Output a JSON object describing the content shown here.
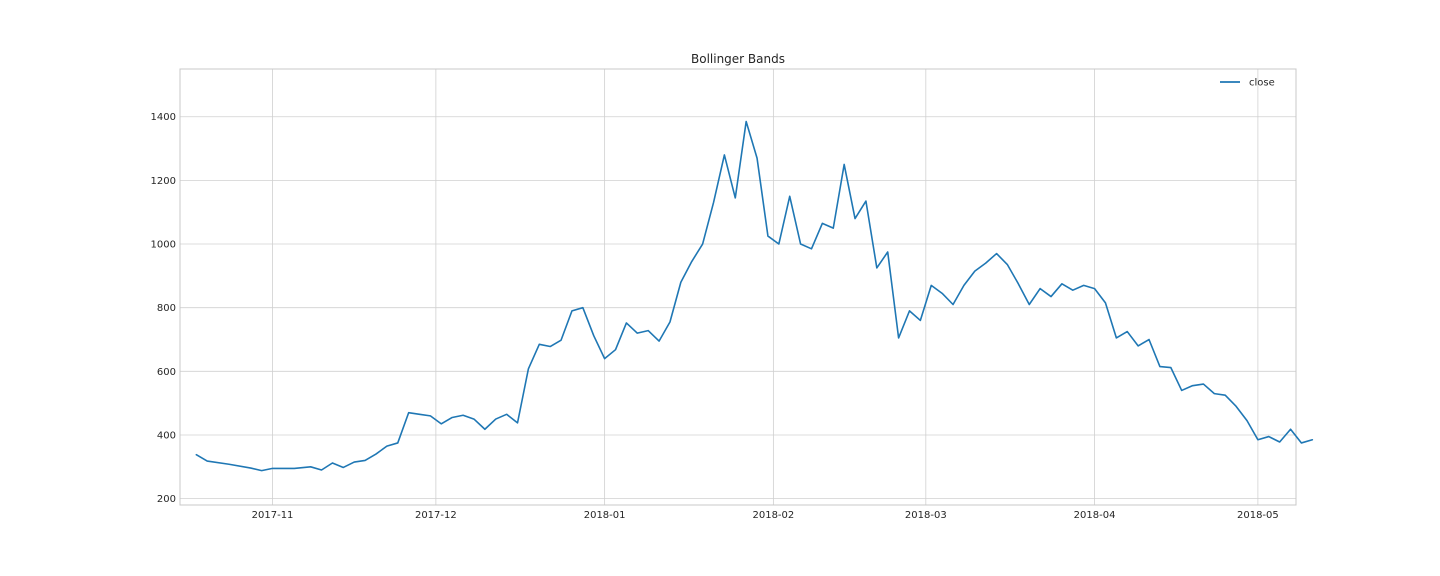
{
  "chart_data": {
    "type": "line",
    "title": "Bollinger Bands",
    "xlabel": "",
    "ylabel": "",
    "x_range": [
      "2017-10-15",
      "2018-05-08"
    ],
    "ylim": [
      180,
      1550
    ],
    "grid": true,
    "legend_position": "top-right",
    "x_ticks": [
      {
        "date": "2017-11-01",
        "label": "2017-11"
      },
      {
        "date": "2017-12-01",
        "label": "2017-12"
      },
      {
        "date": "2018-01-01",
        "label": "2018-01"
      },
      {
        "date": "2018-02-01",
        "label": "2018-02"
      },
      {
        "date": "2018-03-01",
        "label": "2018-03"
      },
      {
        "date": "2018-04-01",
        "label": "2018-04"
      },
      {
        "date": "2018-05-01",
        "label": "2018-05"
      }
    ],
    "y_ticks": [
      200,
      400,
      600,
      800,
      1000,
      1200,
      1400
    ],
    "series": [
      {
        "name": "close",
        "color": "#1f77b4",
        "points": [
          [
            "2017-10-18",
            338
          ],
          [
            "2017-10-20",
            318
          ],
          [
            "2017-10-24",
            308
          ],
          [
            "2017-10-28",
            296
          ],
          [
            "2017-10-30",
            288
          ],
          [
            "2017-11-01",
            295
          ],
          [
            "2017-11-05",
            295
          ],
          [
            "2017-11-08",
            300
          ],
          [
            "2017-11-10",
            290
          ],
          [
            "2017-11-12",
            312
          ],
          [
            "2017-11-14",
            298
          ],
          [
            "2017-11-16",
            315
          ],
          [
            "2017-11-18",
            320
          ],
          [
            "2017-11-20",
            340
          ],
          [
            "2017-11-22",
            365
          ],
          [
            "2017-11-24",
            375
          ],
          [
            "2017-11-26",
            470
          ],
          [
            "2017-11-28",
            465
          ],
          [
            "2017-11-30",
            460
          ],
          [
            "2017-12-02",
            435
          ],
          [
            "2017-12-04",
            455
          ],
          [
            "2017-12-06",
            462
          ],
          [
            "2017-12-08",
            450
          ],
          [
            "2017-12-10",
            418
          ],
          [
            "2017-12-12",
            450
          ],
          [
            "2017-12-14",
            465
          ],
          [
            "2017-12-16",
            438
          ],
          [
            "2017-12-18",
            608
          ],
          [
            "2017-12-20",
            685
          ],
          [
            "2017-12-22",
            678
          ],
          [
            "2017-12-24",
            698
          ],
          [
            "2017-12-26",
            790
          ],
          [
            "2017-12-28",
            800
          ],
          [
            "2017-12-30",
            712
          ],
          [
            "2018-01-01",
            640
          ],
          [
            "2018-01-03",
            668
          ],
          [
            "2018-01-05",
            752
          ],
          [
            "2018-01-07",
            720
          ],
          [
            "2018-01-09",
            728
          ],
          [
            "2018-01-11",
            695
          ],
          [
            "2018-01-13",
            755
          ],
          [
            "2018-01-15",
            880
          ],
          [
            "2018-01-17",
            945
          ],
          [
            "2018-01-19",
            1000
          ],
          [
            "2018-01-21",
            1130
          ],
          [
            "2018-01-23",
            1280
          ],
          [
            "2018-01-25",
            1145
          ],
          [
            "2018-01-27",
            1385
          ],
          [
            "2018-01-29",
            1270
          ],
          [
            "2018-01-31",
            1025
          ],
          [
            "2018-02-02",
            1000
          ],
          [
            "2018-02-04",
            1150
          ],
          [
            "2018-02-06",
            1000
          ],
          [
            "2018-02-08",
            985
          ],
          [
            "2018-02-10",
            1065
          ],
          [
            "2018-02-12",
            1050
          ],
          [
            "2018-02-14",
            1250
          ],
          [
            "2018-02-16",
            1080
          ],
          [
            "2018-02-18",
            1135
          ],
          [
            "2018-02-20",
            925
          ],
          [
            "2018-02-22",
            975
          ],
          [
            "2018-02-24",
            705
          ],
          [
            "2018-02-26",
            790
          ],
          [
            "2018-02-28",
            760
          ],
          [
            "2018-03-02",
            870
          ],
          [
            "2018-03-04",
            845
          ],
          [
            "2018-03-06",
            810
          ],
          [
            "2018-03-08",
            870
          ],
          [
            "2018-03-10",
            915
          ],
          [
            "2018-03-12",
            940
          ],
          [
            "2018-03-14",
            970
          ],
          [
            "2018-03-16",
            935
          ],
          [
            "2018-03-18",
            875
          ],
          [
            "2018-03-20",
            810
          ],
          [
            "2018-03-22",
            860
          ],
          [
            "2018-03-24",
            835
          ],
          [
            "2018-03-26",
            875
          ],
          [
            "2018-03-28",
            855
          ],
          [
            "2018-03-30",
            870
          ],
          [
            "2018-04-01",
            860
          ],
          [
            "2018-04-03",
            815
          ],
          [
            "2018-04-05",
            705
          ],
          [
            "2018-04-07",
            725
          ],
          [
            "2018-04-09",
            680
          ],
          [
            "2018-04-11",
            700
          ],
          [
            "2018-04-13",
            615
          ],
          [
            "2018-04-15",
            612
          ],
          [
            "2018-04-17",
            540
          ],
          [
            "2018-04-19",
            555
          ],
          [
            "2018-04-21",
            560
          ],
          [
            "2018-04-23",
            530
          ],
          [
            "2018-04-25",
            525
          ],
          [
            "2018-04-27",
            490
          ],
          [
            "2018-04-29",
            445
          ],
          [
            "2018-05-01",
            385
          ],
          [
            "2018-05-03",
            395
          ],
          [
            "2018-05-05",
            378
          ],
          [
            "2018-05-07",
            418
          ],
          [
            "2018-05-09",
            375
          ],
          [
            "2018-05-11",
            385
          ]
        ]
      }
    ]
  }
}
